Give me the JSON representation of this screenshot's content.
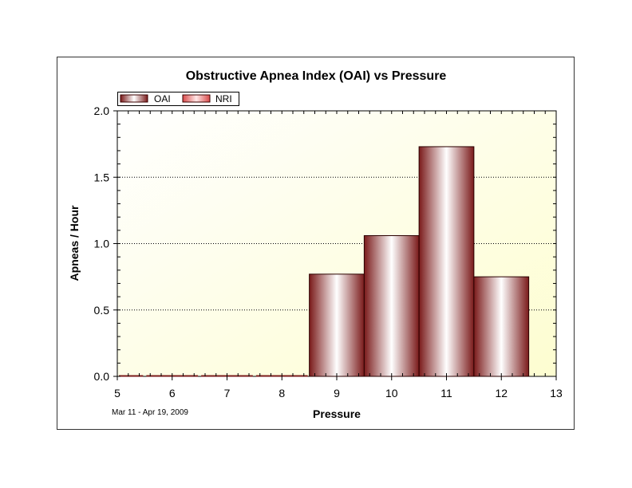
{
  "chart_data": {
    "type": "bar",
    "title": "Obstructive Apnea Index (OAI) vs Pressure",
    "xlabel": "Pressure",
    "ylabel": "Apneas / Hour",
    "date_range": "Mar 11 - Apr 19, 2009",
    "xlim": [
      5,
      13
    ],
    "ylim": [
      0,
      2.0
    ],
    "x_ticks": [
      "5",
      "6",
      "7",
      "8",
      "9",
      "10",
      "11",
      "12",
      "13"
    ],
    "y_ticks": [
      "0.0",
      "0.5",
      "1.0",
      "1.5",
      "2.0"
    ],
    "grid": "horizontal-dotted",
    "legend": {
      "placement": "top-left",
      "entries": [
        "OAI",
        "NRI"
      ]
    },
    "series": [
      {
        "name": "OAI",
        "x": [
          5,
          6,
          7,
          8,
          9,
          10,
          11,
          12
        ],
        "values": [
          0,
          0,
          0,
          0,
          0.77,
          1.06,
          1.73,
          0.75
        ]
      },
      {
        "name": "NRI",
        "x": [
          5,
          6,
          7,
          8,
          9,
          10,
          11,
          12
        ],
        "values": [
          0,
          0,
          0,
          0,
          0,
          0,
          0,
          0
        ]
      }
    ],
    "colors": {
      "oai_dark": "#7a1a1a",
      "oai_light": "#ffffff",
      "nri_dark": "#d94a4a",
      "nri_light": "#ffe6e6",
      "plot_bg_light": "#fffff8",
      "plot_bg_dark": "#ffffcc"
    }
  }
}
